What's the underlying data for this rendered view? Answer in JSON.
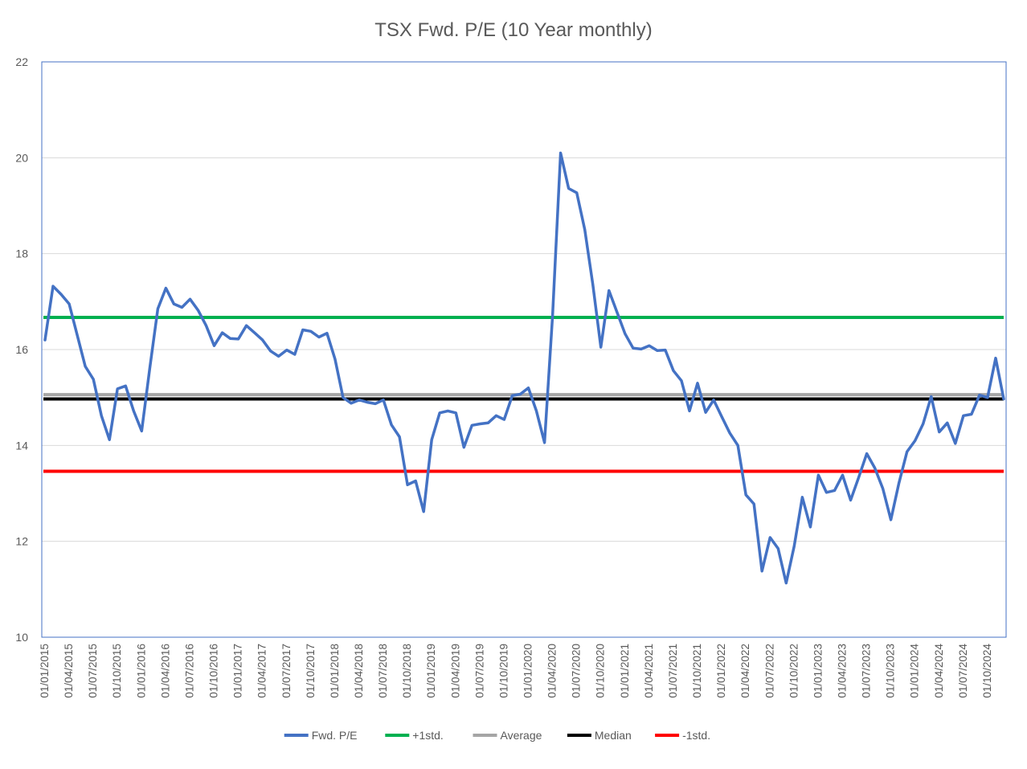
{
  "chart_data": {
    "type": "line",
    "title": "TSX Fwd. P/E (10 Year monthly)",
    "ylim": [
      10,
      22
    ],
    "yticks": [
      10,
      12,
      14,
      16,
      18,
      20,
      22
    ],
    "grid": true,
    "legend_position": "bottom",
    "x": [
      "01/01/2015",
      "01/02/2015",
      "01/03/2015",
      "01/04/2015",
      "01/05/2015",
      "01/06/2015",
      "01/07/2015",
      "01/08/2015",
      "01/09/2015",
      "01/10/2015",
      "01/11/2015",
      "01/12/2015",
      "01/01/2016",
      "01/02/2016",
      "01/03/2016",
      "01/04/2016",
      "01/05/2016",
      "01/06/2016",
      "01/07/2016",
      "01/08/2016",
      "01/09/2016",
      "01/10/2016",
      "01/11/2016",
      "01/12/2016",
      "01/01/2017",
      "01/02/2017",
      "01/03/2017",
      "01/04/2017",
      "01/05/2017",
      "01/06/2017",
      "01/07/2017",
      "01/08/2017",
      "01/09/2017",
      "01/10/2017",
      "01/11/2017",
      "01/12/2017",
      "01/01/2018",
      "01/02/2018",
      "01/03/2018",
      "01/04/2018",
      "01/05/2018",
      "01/06/2018",
      "01/07/2018",
      "01/08/2018",
      "01/09/2018",
      "01/10/2018",
      "01/11/2018",
      "01/12/2018",
      "01/01/2019",
      "01/02/2019",
      "01/03/2019",
      "01/04/2019",
      "01/05/2019",
      "01/06/2019",
      "01/07/2019",
      "01/08/2019",
      "01/09/2019",
      "01/10/2019",
      "01/11/2019",
      "01/12/2019",
      "01/01/2020",
      "01/02/2020",
      "01/03/2020",
      "01/04/2020",
      "01/05/2020",
      "01/06/2020",
      "01/07/2020",
      "01/08/2020",
      "01/09/2020",
      "01/10/2020",
      "01/11/2020",
      "01/12/2020",
      "01/01/2021",
      "01/02/2021",
      "01/03/2021",
      "01/04/2021",
      "01/05/2021",
      "01/06/2021",
      "01/07/2021",
      "01/08/2021",
      "01/09/2021",
      "01/10/2021",
      "01/11/2021",
      "01/12/2021",
      "01/01/2022",
      "01/02/2022",
      "01/03/2022",
      "01/04/2022",
      "01/05/2022",
      "01/06/2022",
      "01/07/2022",
      "01/08/2022",
      "01/09/2022",
      "01/10/2022",
      "01/11/2022",
      "01/12/2022",
      "01/01/2023",
      "01/02/2023",
      "01/03/2023",
      "01/04/2023",
      "01/05/2023",
      "01/06/2023",
      "01/07/2023",
      "01/08/2023",
      "01/09/2023",
      "01/10/2023",
      "01/11/2023",
      "01/12/2023",
      "01/01/2024",
      "01/02/2024",
      "01/03/2024",
      "01/04/2024",
      "01/05/2024",
      "01/06/2024",
      "01/07/2024",
      "01/08/2024",
      "01/09/2024",
      "01/10/2024",
      "01/11/2024",
      "01/12/2024"
    ],
    "x_tick_labels": [
      "01/01/2015",
      "01/04/2015",
      "01/07/2015",
      "01/10/2015",
      "01/01/2016",
      "01/04/2016",
      "01/07/2016",
      "01/10/2016",
      "01/01/2017",
      "01/04/2017",
      "01/07/2017",
      "01/10/2017",
      "01/01/2018",
      "01/04/2018",
      "01/07/2018",
      "01/10/2018",
      "01/01/2019",
      "01/04/2019",
      "01/07/2019",
      "01/10/2019",
      "01/01/2020",
      "01/04/2020",
      "01/07/2020",
      "01/10/2020",
      "01/01/2021",
      "01/04/2021",
      "01/07/2021",
      "01/10/2021",
      "01/01/2022",
      "01/04/2022",
      "01/07/2022",
      "01/10/2022",
      "01/01/2023",
      "01/04/2023",
      "01/07/2023",
      "01/10/2023",
      "01/01/2024",
      "01/04/2024",
      "01/07/2024",
      "01/10/2024"
    ],
    "series": [
      {
        "name": "Fwd. P/E",
        "color": "#4472C4",
        "values": [
          16.2,
          17.32,
          17.15,
          16.95,
          16.3,
          15.65,
          15.38,
          14.62,
          14.12,
          15.18,
          15.24,
          14.72,
          14.3,
          15.6,
          16.85,
          17.28,
          16.95,
          16.88,
          17.05,
          16.82,
          16.5,
          16.08,
          16.35,
          16.23,
          16.22,
          16.5,
          16.35,
          16.2,
          15.97,
          15.86,
          15.99,
          15.9,
          16.41,
          16.38,
          16.26,
          16.34,
          15.8,
          15.0,
          14.88,
          14.95,
          14.9,
          14.87,
          14.95,
          14.43,
          14.18,
          13.18,
          13.26,
          12.62,
          14.12,
          14.68,
          14.72,
          14.68,
          13.96,
          14.42,
          14.45,
          14.47,
          14.62,
          14.54,
          15.04,
          15.07,
          15.2,
          14.72,
          14.06,
          16.7,
          20.1,
          19.36,
          19.27,
          18.5,
          17.36,
          16.05,
          17.23,
          16.78,
          16.33,
          16.03,
          16.01,
          16.08,
          15.98,
          15.99,
          15.56,
          15.35,
          14.72,
          15.3,
          14.69,
          14.95,
          14.6,
          14.26,
          14.0,
          12.97,
          12.78,
          11.38,
          12.08,
          11.85,
          11.13,
          11.9,
          12.92,
          12.3,
          13.38,
          13.02,
          13.06,
          13.38,
          12.86,
          13.33,
          13.83,
          13.53,
          13.1,
          12.45,
          13.22,
          13.87,
          14.1,
          14.45,
          15.02,
          14.28,
          14.47,
          14.04,
          14.62,
          14.65,
          15.05,
          15.0,
          15.82,
          14.97
        ]
      },
      {
        "name": "+1std.",
        "color": "#00B050",
        "constant": 16.67
      },
      {
        "name": "Average",
        "color": "#A5A5A5",
        "constant": 15.06
      },
      {
        "name": "Median",
        "color": "#000000",
        "constant": 14.97
      },
      {
        "name": "-1std.",
        "color": "#FF0000",
        "constant": 13.46
      }
    ]
  }
}
